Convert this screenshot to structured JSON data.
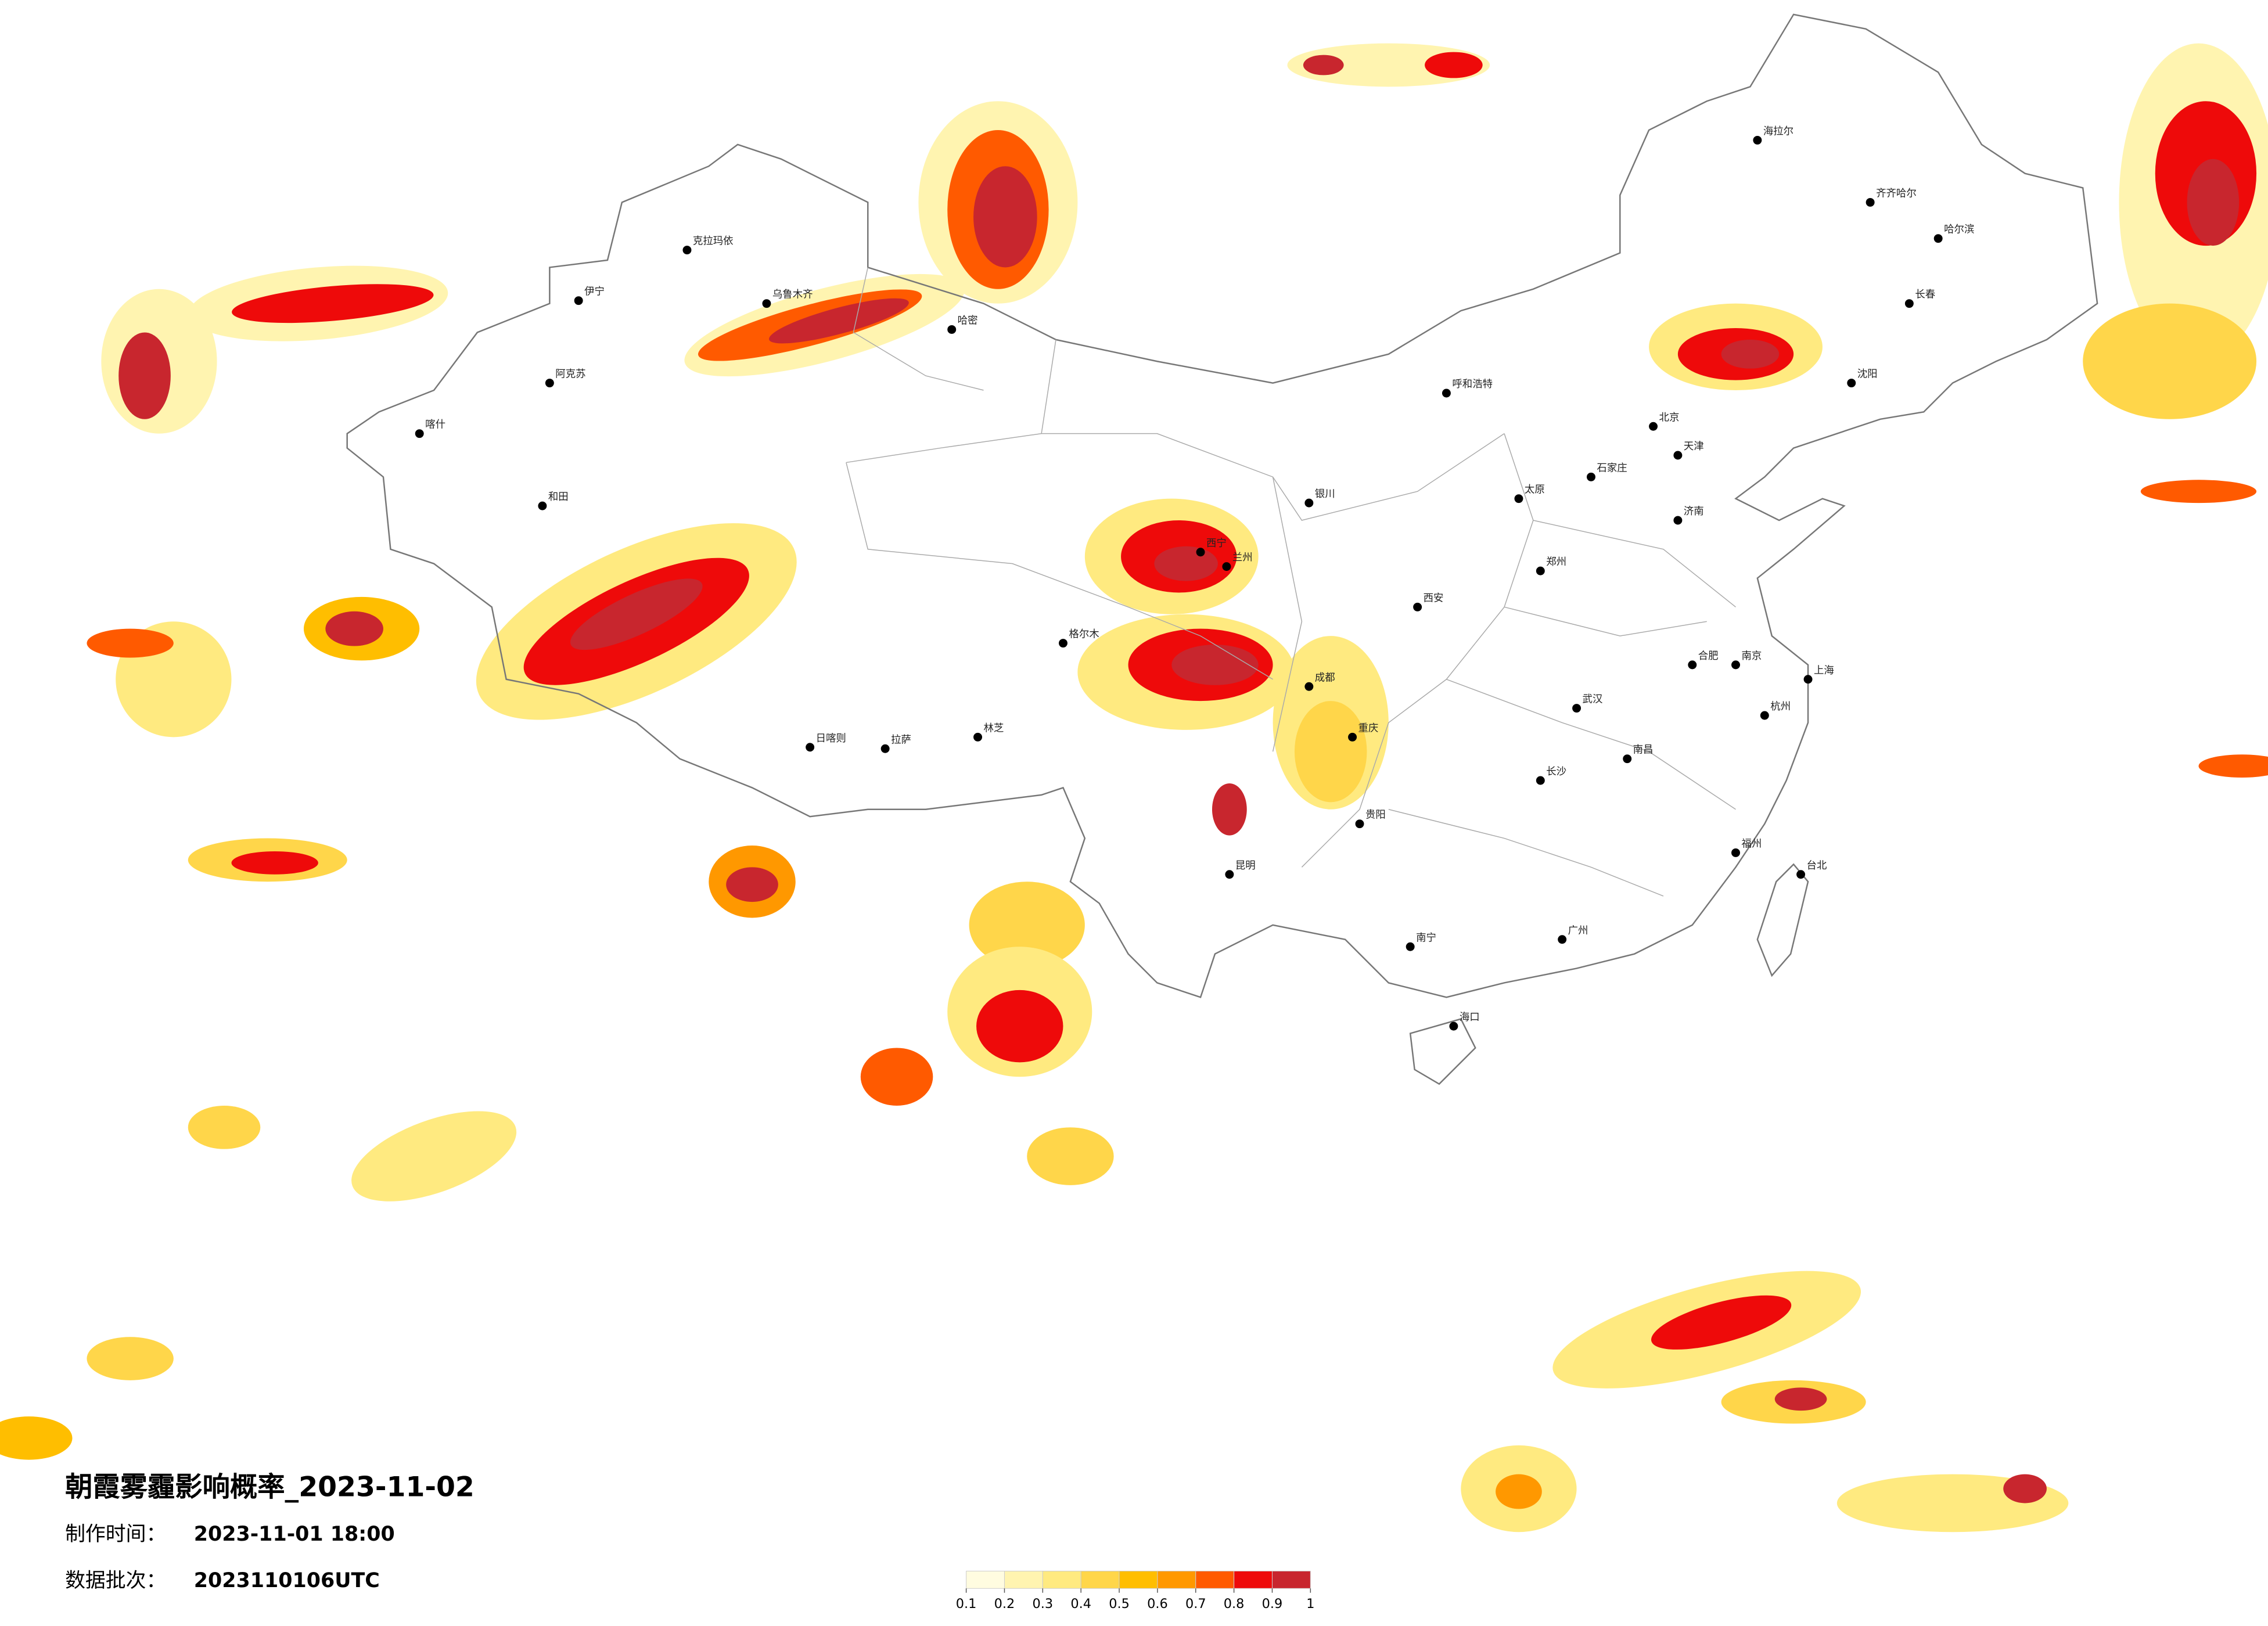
{
  "title": "朝霞雾霾影响概率_2023-11-02",
  "made_time": {
    "label": "制作时间：",
    "value": "2023-11-01 18:00"
  },
  "batch": {
    "label": "数据批次：",
    "value": "2023110106UTC"
  },
  "legend": {
    "ticks": [
      0.1,
      0.2,
      0.3,
      0.4,
      0.5,
      0.6,
      0.7,
      0.8,
      0.9,
      1
    ],
    "colors": [
      "#fffce0",
      "#fff4b0",
      "#ffea80",
      "#ffd64a",
      "#ffbe00",
      "#ff9800",
      "#ff5a00",
      "#ee0a0a",
      "#c8262e"
    ]
  },
  "cities": [
    "乌鲁木齐",
    "克拉玛依",
    "伊宁",
    "阿克苏",
    "喀什",
    "和田",
    "哈密",
    "拉萨",
    "日喀则",
    "林芝",
    "格尔木",
    "西宁",
    "兰州",
    "银川",
    "呼和浩特",
    "北京",
    "天津",
    "石家庄",
    "太原",
    "西安",
    "郑州",
    "济南",
    "南京",
    "上海",
    "杭州",
    "合肥",
    "武汉",
    "长沙",
    "南昌",
    "福州",
    "广州",
    "南宁",
    "海口",
    "贵阳",
    "昆明",
    "成都",
    "重庆",
    "哈尔滨",
    "长春",
    "沈阳",
    "台北",
    "海拉尔",
    "齐齐哈尔"
  ]
}
